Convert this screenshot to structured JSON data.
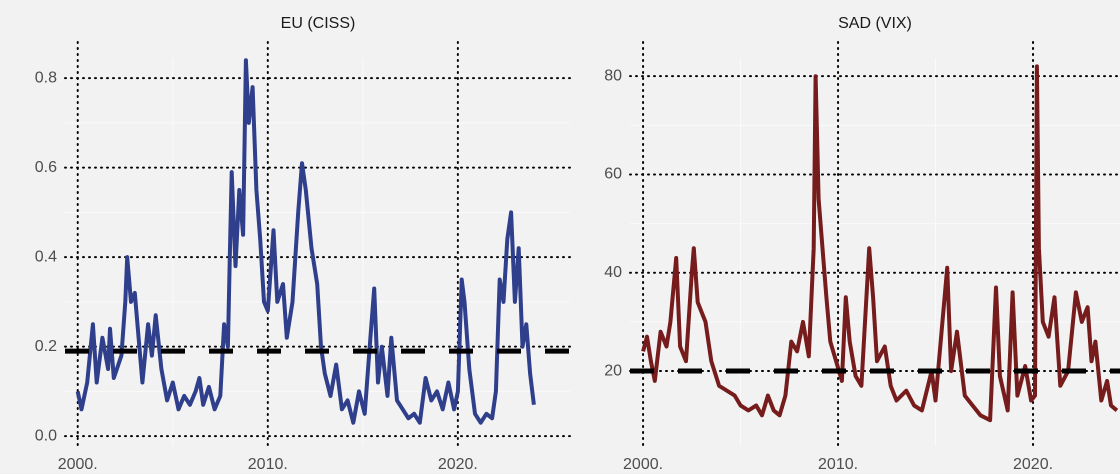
{
  "chart_data": [
    {
      "type": "line",
      "title": "EU (CISS)",
      "color": "#2f3f8c",
      "x": [
        2000.0,
        2000.2,
        2000.5,
        2000.8,
        2001.0,
        2001.3,
        2001.6,
        2001.7,
        2001.9,
        2002.3,
        2002.5,
        2002.6,
        2002.8,
        2003.0,
        2003.2,
        2003.4,
        2003.7,
        2003.9,
        2004.1,
        2004.4,
        2004.7,
        2005.0,
        2005.3,
        2005.6,
        2005.9,
        2006.2,
        2006.4,
        2006.6,
        2006.9,
        2007.2,
        2007.5,
        2007.7,
        2007.9,
        2008.0,
        2008.1,
        2008.3,
        2008.5,
        2008.7,
        2008.85,
        2009.0,
        2009.2,
        2009.4,
        2009.6,
        2009.8,
        2010.0,
        2010.3,
        2010.5,
        2010.8,
        2011.0,
        2011.3,
        2011.6,
        2011.8,
        2012.0,
        2012.3,
        2012.6,
        2012.8,
        2013.0,
        2013.3,
        2013.6,
        2013.9,
        2014.2,
        2014.5,
        2014.8,
        2015.1,
        2015.4,
        2015.6,
        2015.8,
        2016.0,
        2016.3,
        2016.5,
        2016.8,
        2017.1,
        2017.4,
        2017.7,
        2018.0,
        2018.3,
        2018.6,
        2018.9,
        2019.2,
        2019.5,
        2019.8,
        2020.0,
        2020.2,
        2020.35,
        2020.6,
        2020.9,
        2021.2,
        2021.5,
        2021.8,
        2022.0,
        2022.2,
        2022.4,
        2022.6,
        2022.8,
        2023.0,
        2023.2,
        2023.4,
        2023.6,
        2023.8,
        2024.0
      ],
      "values": [
        0.1,
        0.06,
        0.12,
        0.25,
        0.12,
        0.22,
        0.15,
        0.24,
        0.13,
        0.18,
        0.3,
        0.4,
        0.3,
        0.32,
        0.22,
        0.12,
        0.25,
        0.18,
        0.27,
        0.15,
        0.08,
        0.12,
        0.06,
        0.09,
        0.07,
        0.1,
        0.13,
        0.07,
        0.11,
        0.06,
        0.09,
        0.25,
        0.2,
        0.4,
        0.59,
        0.38,
        0.55,
        0.45,
        0.84,
        0.7,
        0.78,
        0.55,
        0.44,
        0.3,
        0.28,
        0.46,
        0.3,
        0.34,
        0.22,
        0.3,
        0.5,
        0.61,
        0.55,
        0.42,
        0.34,
        0.2,
        0.14,
        0.09,
        0.16,
        0.06,
        0.08,
        0.03,
        0.1,
        0.05,
        0.22,
        0.33,
        0.12,
        0.2,
        0.09,
        0.22,
        0.08,
        0.06,
        0.04,
        0.05,
        0.03,
        0.13,
        0.08,
        0.1,
        0.06,
        0.12,
        0.06,
        0.1,
        0.35,
        0.3,
        0.15,
        0.05,
        0.03,
        0.05,
        0.04,
        0.1,
        0.35,
        0.3,
        0.44,
        0.5,
        0.3,
        0.42,
        0.2,
        0.25,
        0.14,
        0.07
      ],
      "reference_line": 0.19,
      "xlim": [
        1999.33,
        2025.9
      ],
      "ylim": [
        -0.022,
        0.845
      ],
      "xticks": [
        {
          "value": 2000,
          "label": "2000."
        },
        {
          "value": 2010,
          "label": "2010."
        },
        {
          "value": 2020,
          "label": "2020."
        }
      ],
      "yticks": [
        {
          "value": 0,
          "label": "0.0"
        },
        0.2,
        0.4,
        0.6,
        0.8
      ],
      "grid": true
    },
    {
      "type": "line",
      "title": "SAD (VIX)",
      "color": "#761c1c",
      "x": [
        2000.0,
        2000.2,
        2000.4,
        2000.6,
        2000.9,
        2001.2,
        2001.4,
        2001.7,
        2001.9,
        2002.2,
        2002.5,
        2002.6,
        2002.8,
        2003.0,
        2003.2,
        2003.5,
        2003.9,
        2004.3,
        2004.7,
        2005.0,
        2005.4,
        2005.8,
        2006.1,
        2006.4,
        2006.7,
        2007.0,
        2007.3,
        2007.6,
        2007.9,
        2008.2,
        2008.5,
        2008.75,
        2008.85,
        2009.0,
        2009.2,
        2009.4,
        2009.6,
        2009.9,
        2010.2,
        2010.4,
        2010.6,
        2010.9,
        2011.2,
        2011.6,
        2011.8,
        2012.0,
        2012.4,
        2012.7,
        2013.0,
        2013.5,
        2013.9,
        2014.3,
        2014.8,
        2015.0,
        2015.6,
        2015.8,
        2016.1,
        2016.5,
        2016.9,
        2017.3,
        2017.8,
        2018.1,
        2018.3,
        2018.7,
        2018.95,
        2019.2,
        2019.6,
        2019.9,
        2020.1,
        2020.2,
        2020.3,
        2020.5,
        2020.8,
        2021.1,
        2021.4,
        2021.8,
        2022.0,
        2022.2,
        2022.5,
        2022.8,
        2023.0,
        2023.2,
        2023.5,
        2023.8,
        2024.0,
        2024.3
      ],
      "values": [
        24,
        27,
        22,
        18,
        28,
        25,
        30,
        43,
        25,
        22,
        40,
        45,
        34,
        32,
        30,
        22,
        17,
        16,
        15,
        13,
        12,
        13,
        11,
        15,
        12,
        11,
        15,
        26,
        24,
        30,
        23,
        45,
        80,
        55,
        45,
        35,
        26,
        22,
        18,
        35,
        26,
        19,
        17,
        45,
        35,
        22,
        25,
        17,
        14,
        16,
        13,
        12,
        20,
        14,
        41,
        20,
        28,
        15,
        13,
        11,
        10,
        37,
        19,
        12,
        36,
        15,
        21,
        14,
        15,
        82,
        45,
        30,
        27,
        35,
        17,
        20,
        28,
        36,
        30,
        33,
        22,
        26,
        14,
        18,
        13,
        12
      ],
      "reference_line": 20,
      "xlim": [
        1999.33,
        2024.46
      ],
      "ylim": [
        4.75,
        83.7
      ],
      "xticks": [
        {
          "value": 2000,
          "label": "2000."
        },
        {
          "value": 2010,
          "label": "2010."
        },
        {
          "value": 2020,
          "label": "2020."
        }
      ],
      "yticks": [
        20,
        40,
        60,
        80
      ],
      "grid": true
    }
  ]
}
